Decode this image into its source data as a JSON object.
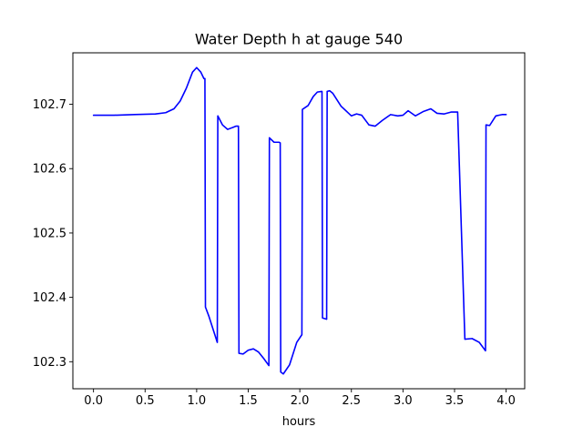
{
  "chart_data": {
    "type": "line",
    "title": "Water Depth h at gauge 540",
    "xlabel": "hours",
    "ylabel": "",
    "xlim": [
      -0.2,
      4.18
    ],
    "ylim": [
      102.258,
      102.78
    ],
    "xticks": [
      0.0,
      0.5,
      1.0,
      1.5,
      2.0,
      2.5,
      3.0,
      3.5,
      4.0
    ],
    "xtick_labels": [
      "0.0",
      "0.5",
      "1.0",
      "1.5",
      "2.0",
      "2.5",
      "3.0",
      "3.5",
      "4.0"
    ],
    "yticks": [
      102.3,
      102.4,
      102.5,
      102.6,
      102.7
    ],
    "ytick_labels": [
      "102.3",
      "102.4",
      "102.5",
      "102.6",
      "102.7"
    ],
    "grid": false,
    "line_color": "#0000ff",
    "series": [
      {
        "name": "",
        "x": [
          0.0,
          0.2,
          0.4,
          0.6,
          0.7,
          0.78,
          0.84,
          0.9,
          0.96,
          1.0,
          1.04,
          1.07,
          1.08,
          1.085,
          1.12,
          1.16,
          1.2,
          1.205,
          1.25,
          1.3,
          1.35,
          1.38,
          1.405,
          1.41,
          1.45,
          1.5,
          1.55,
          1.6,
          1.65,
          1.7,
          1.705,
          1.75,
          1.8,
          1.81,
          1.815,
          1.84,
          1.9,
          1.97,
          2.02,
          2.025,
          2.08,
          2.13,
          2.17,
          2.21,
          2.215,
          2.22,
          2.26,
          2.265,
          2.29,
          2.32,
          2.4,
          2.5,
          2.55,
          2.6,
          2.67,
          2.73,
          2.8,
          2.88,
          2.95,
          3.0,
          3.05,
          3.12,
          3.2,
          3.27,
          3.33,
          3.4,
          3.47,
          3.53,
          3.6,
          3.67,
          3.74,
          3.8,
          3.805,
          3.84,
          3.9,
          3.96,
          3.965,
          3.975,
          3.98,
          4.0
        ],
        "y": [
          102.683,
          102.683,
          102.684,
          102.685,
          102.687,
          102.693,
          102.705,
          102.725,
          102.75,
          102.757,
          102.75,
          102.74,
          102.74,
          102.385,
          102.37,
          102.35,
          102.33,
          102.682,
          102.668,
          102.661,
          102.664,
          102.666,
          102.666,
          102.313,
          102.312,
          102.318,
          102.32,
          102.315,
          102.305,
          102.294,
          102.648,
          102.641,
          102.641,
          102.64,
          102.284,
          102.281,
          102.295,
          102.33,
          102.342,
          102.692,
          102.698,
          102.712,
          102.719,
          102.72,
          102.72,
          102.368,
          102.366,
          102.72,
          102.721,
          102.717,
          102.697,
          102.682,
          102.685,
          102.683,
          102.668,
          102.666,
          102.675,
          102.684,
          102.682,
          102.683,
          102.69,
          102.682,
          102.689,
          102.693,
          102.686,
          102.685,
          102.688,
          102.688,
          102.335,
          102.336,
          102.33,
          102.317,
          102.668,
          102.667,
          102.682,
          102.684,
          102.684,
          102.684,
          102.684,
          102.684
        ]
      }
    ]
  }
}
